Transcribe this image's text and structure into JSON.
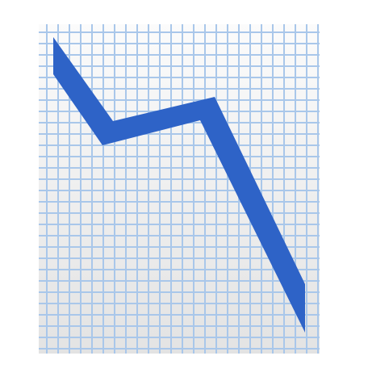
{
  "icon": {
    "name": "chart-decreasing-icon",
    "colors": {
      "paper_light": "#fbfbfb",
      "paper_shadow": "#e3e3e3",
      "grid_line": "#a9c7ea",
      "trend_line": "#2e63c7"
    }
  }
}
